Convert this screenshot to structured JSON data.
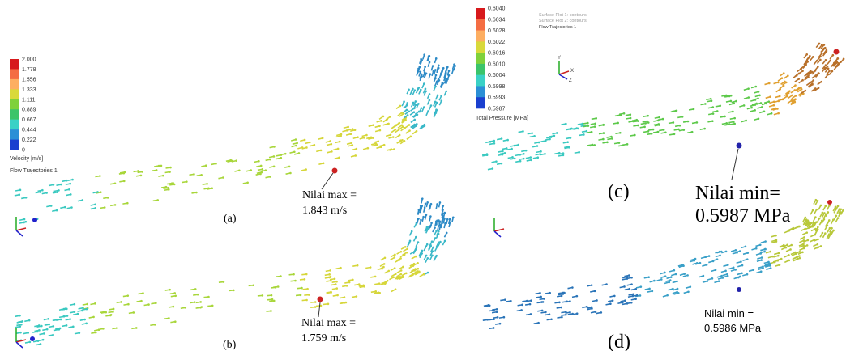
{
  "velocity_legend": {
    "ticks": [
      "2.000",
      "1.778",
      "1.556",
      "1.333",
      "1.111",
      "0.889",
      "0.667",
      "0.444",
      "0.222",
      "0"
    ],
    "title": "Velocity [m/s]",
    "caption": "Flow Trajectories 1"
  },
  "pressure_legend": {
    "ticks": [
      "0.6040",
      "0.6034",
      "0.6028",
      "0.6022",
      "0.6016",
      "0.6010",
      "0.6004",
      "0.5998",
      "0.5993",
      "0.5987"
    ],
    "title": "Total Pressure [MPa]"
  },
  "plot_notes": [
    "Surface Plot 1: contours",
    "Surface Plot 2: contours",
    "Flow Trajectories 1"
  ],
  "triad": [
    "Y",
    "X",
    "Z"
  ],
  "panels": [
    {
      "label": "(a)",
      "annotation": [
        "Nilai max =",
        "1.843 m/s"
      ]
    },
    {
      "label": "(b)",
      "annotation": [
        "Nilai max =",
        "1.759 m/s"
      ]
    },
    {
      "label": "(c)",
      "annotation": [
        "Nilai min=",
        "0.5987 MPa"
      ]
    },
    {
      "label": "(d)",
      "annotation": [
        "Nilai min =",
        "0.5986 MPa"
      ]
    }
  ]
}
